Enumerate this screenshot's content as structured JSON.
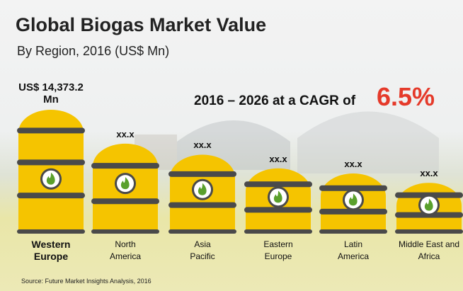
{
  "chart_data": {
    "type": "bar",
    "title": "Global Biogas Market Value",
    "subtitle": "By Region, 2016 (US$ Mn)",
    "annotation": "2016 – 2026 at a CAGR of",
    "annotation_value": "6.5%",
    "source": "Source: Future Market Insights Analysis, 2016",
    "categories": [
      "Western Europe",
      "North America",
      "Asia Pacific",
      "Eastern Europe",
      "Latin America",
      "Middle East and Africa"
    ],
    "values": [
      14373.2,
      10400,
      9100,
      7500,
      6900,
      5800
    ],
    "value_labels": [
      "US$ 14,373.2 Mn",
      "xx.x",
      "xx.x",
      "xx.x",
      "xx.x",
      "xx.x"
    ],
    "color": "#f5c400"
  }
}
